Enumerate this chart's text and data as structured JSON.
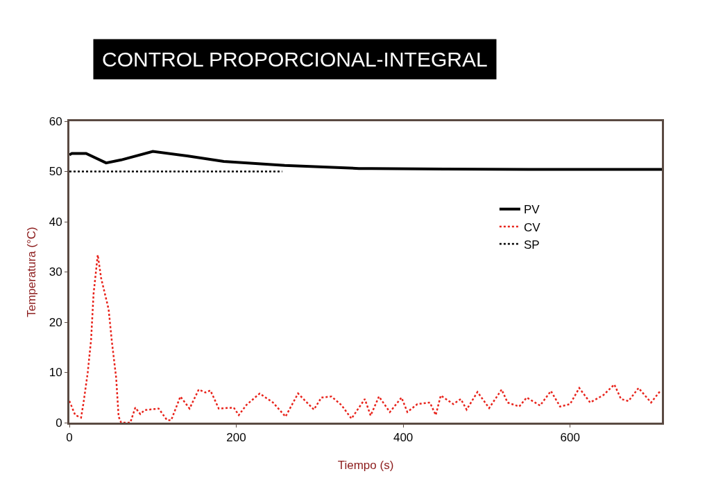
{
  "chart_data": {
    "type": "line",
    "title": "CONTROL PROPORCIONAL-INTEGRAL",
    "xlabel": "Tiempo (s)",
    "ylabel": "Temperatura (°C)",
    "xlim": [
      0,
      710
    ],
    "ylim": [
      0,
      60
    ],
    "xticks": [
      0,
      200,
      400,
      600
    ],
    "yticks": [
      0,
      10,
      20,
      30,
      40,
      50,
      60
    ],
    "legend": "right",
    "marker": "none",
    "series": [
      {
        "name": "PV",
        "color": "#000000",
        "line_style": "solid",
        "x": [
          0,
          3,
          20,
          44,
          62,
          100,
          141,
          185,
          258,
          347,
          362,
          450,
          550,
          650,
          710
        ],
        "values": [
          53.3,
          53.6,
          53.6,
          51.7,
          52.3,
          54,
          53.1,
          52,
          51.2,
          50.6,
          50.6,
          50.5,
          50.4,
          50.4,
          50.4
        ]
      },
      {
        "name": "CV",
        "color": "#e8231b",
        "line_style": "dotted",
        "x": [
          0,
          7,
          14,
          17,
          22,
          26,
          29,
          34,
          38,
          47,
          51,
          56,
          59,
          62,
          73,
          79,
          85,
          90,
          107,
          117,
          122,
          133,
          144,
          155,
          163,
          169,
          179,
          197,
          203,
          212,
          228,
          244,
          259,
          274,
          293,
          302,
          314,
          326,
          338,
          354,
          361,
          371,
          384,
          398,
          405,
          417,
          432,
          439,
          445,
          460,
          469,
          476,
          489,
          503,
          518,
          525,
          539,
          548,
          564,
          577,
          588,
          600,
          611,
          624,
          640,
          653,
          661,
          670,
          682,
          697,
          708
        ],
        "values": [
          4.3,
          1.5,
          1,
          4,
          10,
          16.5,
          25.7,
          33.4,
          28.8,
          22.6,
          16,
          9,
          1.2,
          0,
          0,
          3,
          1.7,
          2.5,
          2.8,
          0.5,
          0.5,
          5.2,
          2.8,
          6.6,
          6,
          6.4,
          2.8,
          3,
          1.5,
          3.5,
          5.8,
          4,
          1.2,
          5.8,
          2.6,
          5,
          5.2,
          3.5,
          0.8,
          4.7,
          1.4,
          5.2,
          2.1,
          5,
          2.1,
          3.7,
          4,
          1.5,
          5.4,
          3.7,
          4.7,
          2.6,
          6.1,
          2.9,
          6.6,
          4,
          3.2,
          5,
          3.4,
          6.3,
          3.2,
          3.7,
          6.9,
          4,
          5.5,
          7.6,
          4.7,
          4.3,
          6.9,
          4,
          6.3
        ]
      },
      {
        "name": "SP",
        "color": "#000000",
        "line_style": "dotted",
        "x": [
          0,
          255
        ],
        "values": [
          50,
          50
        ]
      }
    ]
  }
}
